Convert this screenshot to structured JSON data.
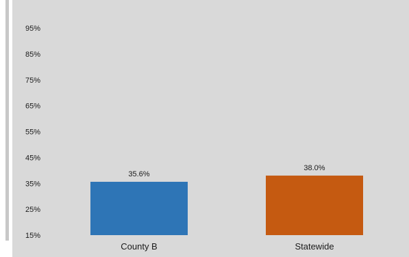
{
  "chart_data": {
    "type": "bar",
    "categories": [
      "County B",
      "Statewide"
    ],
    "values": [
      35.6,
      38.0
    ],
    "data_labels": [
      "35.6%",
      "38.0%"
    ],
    "y_ticks": [
      "95%",
      "85%",
      "75%",
      "65%",
      "55%",
      "45%",
      "35%",
      "25%",
      "15%"
    ],
    "ylim": [
      15,
      95
    ],
    "grid": false,
    "colors": [
      "#2e75b6",
      "#c55a11"
    ]
  }
}
